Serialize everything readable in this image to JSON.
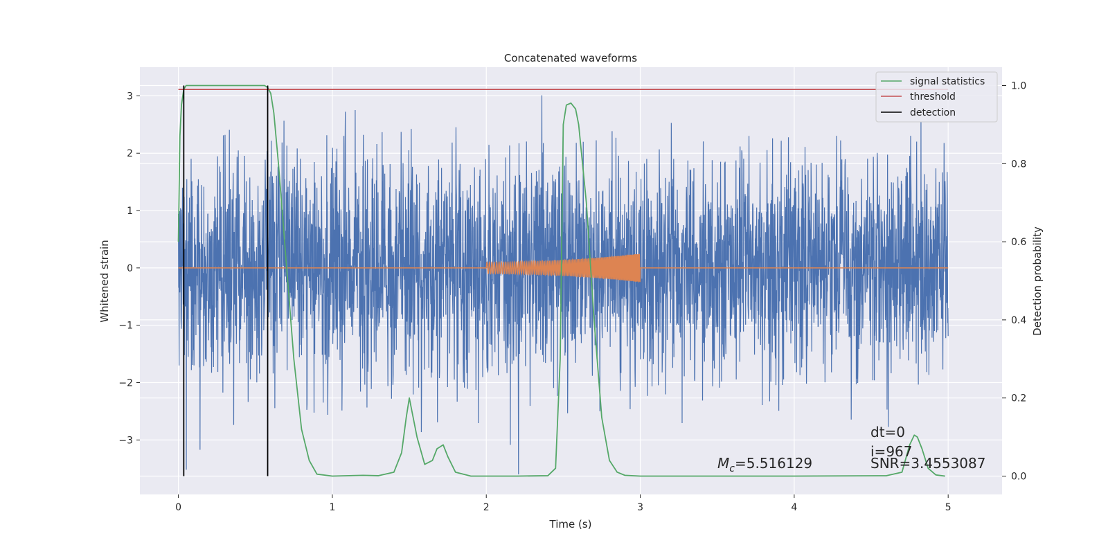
{
  "chart_data": {
    "type": "line",
    "title": "Concatenated waveforms",
    "xlabel": "Time (s)",
    "ylabel_left": "Whitened strain",
    "ylabel_right": "Detection probability",
    "xlim": [
      -0.25,
      5.35
    ],
    "ylim_left": [
      -3.95,
      3.5
    ],
    "ylim_right": [
      -0.047,
      1.047
    ],
    "x_ticks": [
      0,
      1,
      2,
      3,
      4,
      5
    ],
    "y_ticks_left": [
      -3,
      -2,
      -1,
      0,
      1,
      2,
      3
    ],
    "y_ticks_right": [
      0.0,
      0.2,
      0.4,
      0.6,
      0.8,
      1.0
    ],
    "y_tick_labels_left": [
      "−3",
      "−2",
      "−1",
      "0",
      "1",
      "2",
      "3"
    ],
    "y_tick_labels_right": [
      "0.0",
      "0.2",
      "0.4",
      "0.6",
      "0.8",
      "1.0"
    ],
    "grid": true,
    "legend_position": "top-right",
    "colors": {
      "background": "#eaeaf2",
      "grid": "#ffffff",
      "strain": "#4c72b0",
      "template": "#dd8452",
      "signal_statistics": "#55a868",
      "threshold": "#c44e52",
      "detection": "#000000"
    },
    "series": [
      {
        "name": "signal statistics",
        "axis": "right",
        "x": [
          0.0,
          0.01,
          0.02,
          0.035,
          0.05,
          0.1,
          0.2,
          0.35,
          0.5,
          0.56,
          0.58,
          0.6,
          0.62,
          0.65,
          0.7,
          0.75,
          0.8,
          0.85,
          0.9,
          1.0,
          1.2,
          1.3,
          1.4,
          1.45,
          1.48,
          1.5,
          1.52,
          1.55,
          1.6,
          1.65,
          1.68,
          1.72,
          1.75,
          1.8,
          1.9,
          2.2,
          2.4,
          2.45,
          2.48,
          2.5,
          2.52,
          2.55,
          2.58,
          2.6,
          2.65,
          2.7,
          2.75,
          2.8,
          2.85,
          2.9,
          3.0,
          3.5,
          4.0,
          4.6,
          4.7,
          4.75,
          4.78,
          4.8,
          4.83,
          4.87,
          4.92,
          4.98
        ],
        "y": [
          0.6,
          0.87,
          0.95,
          0.99,
          1.0,
          1.0,
          1.0,
          1.0,
          1.0,
          1.0,
          0.995,
          0.98,
          0.93,
          0.8,
          0.55,
          0.3,
          0.12,
          0.04,
          0.005,
          0.0,
          0.002,
          0.001,
          0.01,
          0.06,
          0.15,
          0.2,
          0.16,
          0.1,
          0.03,
          0.04,
          0.07,
          0.08,
          0.05,
          0.01,
          0.0,
          0.0,
          0.001,
          0.02,
          0.3,
          0.9,
          0.95,
          0.955,
          0.94,
          0.9,
          0.7,
          0.4,
          0.15,
          0.04,
          0.01,
          0.002,
          0.0,
          0.0,
          0.0,
          0.001,
          0.01,
          0.08,
          0.105,
          0.1,
          0.07,
          0.02,
          0.003,
          0.0
        ]
      },
      {
        "name": "threshold",
        "axis": "right",
        "x": [
          0.0,
          5.0
        ],
        "y": [
          0.99,
          0.99
        ]
      },
      {
        "name": "detection",
        "axis": "right",
        "x": [
          0.035,
          0.58
        ],
        "y_range": [
          0.0,
          1.0
        ]
      },
      {
        "name": "",
        "axis": "left",
        "description_kind": "whitened strain noise",
        "x_range": [
          0.0,
          5.0
        ],
        "envelope": [
          -3.6,
          3.2
        ]
      },
      {
        "name": "",
        "axis": "left",
        "description_kind": "chirp template",
        "x_range": [
          2.0,
          3.0
        ],
        "amplitude": [
          0.1,
          0.25
        ]
      }
    ],
    "annotations": {
      "mc_prefix": "M",
      "mc_sub": "c",
      "mc_value": "=5.516129",
      "dt": "dt=0",
      "i": "i=967",
      "snr": "SNR=3.4553087"
    }
  }
}
